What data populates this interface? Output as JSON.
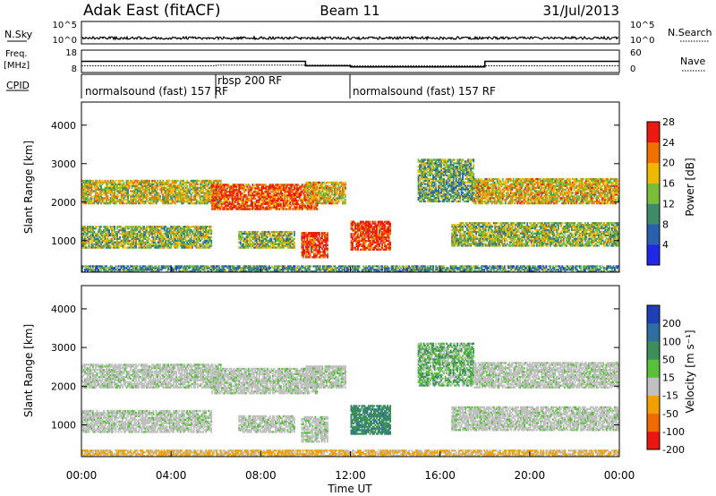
{
  "header": {
    "station": "Adak East (fitACF)",
    "beam": "Beam 11",
    "date": "31/Jul/2013"
  },
  "noise_panel": {
    "left_label": "N.Sky",
    "right_label": "N.Search",
    "left_ticks": [
      "10^5",
      "10^0"
    ],
    "right_ticks": [
      "10^5",
      "10^0"
    ]
  },
  "freq_panel": {
    "left_label": "Freq.",
    "left_unit": "[MHz]",
    "right_label": "Nave",
    "left_ticks": [
      "18",
      "8"
    ],
    "right_ticks": [
      "60",
      "0"
    ]
  },
  "cpid": {
    "label": "CPID",
    "segments": [
      {
        "text": "normalsound (fast) 157 RF",
        "start_hour": 0,
        "end_hour": 6
      },
      {
        "text": "rbsp 200 RF",
        "start_hour": 6,
        "end_hour": 12
      },
      {
        "text": "normalsound (fast) 157 RF",
        "start_hour": 12,
        "end_hour": 24
      }
    ]
  },
  "x_axis": {
    "title": "Time UT",
    "range_hours": [
      0,
      24
    ],
    "ticks": [
      {
        "hour": 0,
        "label": "00:00"
      },
      {
        "hour": 4,
        "label": "04:00"
      },
      {
        "hour": 8,
        "label": "08:00"
      },
      {
        "hour": 12,
        "label": "12:00"
      },
      {
        "hour": 16,
        "label": "16:00"
      },
      {
        "hour": 20,
        "label": "20:00"
      },
      {
        "hour": 24,
        "label": "00:00"
      }
    ]
  },
  "chart_data": [
    {
      "type": "heatmap",
      "parameter": "power",
      "ylabel": "Slant Range [km]",
      "ylim": [
        180,
        4600
      ],
      "yticks": [
        "1000",
        "2000",
        "3000",
        "4000"
      ],
      "colorbar": {
        "label": "Power [dB]",
        "levels": [
          "4",
          "8",
          "12",
          "16",
          "20",
          "24",
          "28"
        ],
        "colors": [
          "#1f28e6",
          "#2a5fb0",
          "#3e8b6a",
          "#79bd38",
          "#f0b800",
          "#f07000",
          "#ea1a10"
        ]
      },
      "echo_regions": [
        {
          "t0": 0.0,
          "t1": 6.2,
          "r0": 1950,
          "r1": 2550,
          "power_db": 18
        },
        {
          "t0": 0.0,
          "t1": 5.8,
          "r0": 800,
          "r1": 1350,
          "power_db": 16
        },
        {
          "t0": 5.8,
          "t1": 10.5,
          "r0": 1800,
          "r1": 2450,
          "power_db": 26
        },
        {
          "t0": 7.0,
          "t1": 9.5,
          "r0": 800,
          "r1": 1250,
          "power_db": 16
        },
        {
          "t0": 10.0,
          "t1": 11.8,
          "r0": 1950,
          "r1": 2500,
          "power_db": 20
        },
        {
          "t0": 9.8,
          "t1": 11.0,
          "r0": 550,
          "r1": 1200,
          "power_db": 28
        },
        {
          "t0": 12.0,
          "t1": 13.8,
          "r0": 750,
          "r1": 1500,
          "power_db": 28
        },
        {
          "t0": 15.0,
          "t1": 17.5,
          "r0": 2000,
          "r1": 3100,
          "power_db": 14
        },
        {
          "t0": 17.5,
          "t1": 24.0,
          "r0": 1950,
          "r1": 2600,
          "power_db": 20
        },
        {
          "t0": 16.5,
          "t1": 24.0,
          "r0": 850,
          "r1": 1450,
          "power_db": 16
        },
        {
          "t0": 0.0,
          "t1": 24.0,
          "r0": 180,
          "r1": 320,
          "power_db": 12
        }
      ]
    },
    {
      "type": "heatmap",
      "parameter": "velocity",
      "ylabel": "Slant Range [km]",
      "ylim": [
        180,
        4600
      ],
      "yticks": [
        "1000",
        "2000",
        "3000",
        "4000"
      ],
      "colorbar": {
        "label": "Velocity [m s⁻¹]",
        "levels": [
          "200",
          "100",
          "50",
          "15",
          "-15",
          "-50",
          "-100",
          "-200"
        ],
        "colors": [
          "#1f3fb8",
          "#2f6fa0",
          "#3c8f5a",
          "#58c03a",
          "#c0c0c0",
          "#f2a000",
          "#f06a00",
          "#e81810"
        ]
      },
      "echo_regions": [
        {
          "t0": 0.0,
          "t1": 6.2,
          "r0": 1950,
          "r1": 2550,
          "velocity": 0
        },
        {
          "t0": 0.0,
          "t1": 5.8,
          "r0": 800,
          "r1": 1350,
          "velocity": 0
        },
        {
          "t0": 5.8,
          "t1": 10.5,
          "r0": 1800,
          "r1": 2450,
          "velocity": 0
        },
        {
          "t0": 7.0,
          "t1": 9.5,
          "r0": 800,
          "r1": 1250,
          "velocity": 0
        },
        {
          "t0": 10.0,
          "t1": 11.8,
          "r0": 1950,
          "r1": 2500,
          "velocity": 0
        },
        {
          "t0": 9.8,
          "t1": 11.0,
          "r0": 550,
          "r1": 1200,
          "velocity": 0
        },
        {
          "t0": 12.0,
          "t1": 13.8,
          "r0": 750,
          "r1": 1500,
          "velocity": 60
        },
        {
          "t0": 15.0,
          "t1": 17.5,
          "r0": 2000,
          "r1": 3100,
          "velocity": 25
        },
        {
          "t0": 17.5,
          "t1": 24.0,
          "r0": 1950,
          "r1": 2600,
          "velocity": 0
        },
        {
          "t0": 16.5,
          "t1": 24.0,
          "r0": 850,
          "r1": 1450,
          "velocity": 0
        },
        {
          "t0": 0.0,
          "t1": 24.0,
          "r0": 180,
          "r1": 320,
          "velocity": -40
        }
      ]
    },
    {
      "type": "line",
      "parameter": "transmit frequency / nave",
      "freq_steps": [
        {
          "t0": 0.0,
          "t1": 10.0,
          "value": 13
        },
        {
          "t0": 10.0,
          "t1": 12.0,
          "value": 11
        },
        {
          "t0": 12.0,
          "t1": 18.0,
          "value": 10.5
        },
        {
          "t0": 18.0,
          "t1": 24.0,
          "value": 13
        }
      ],
      "nave_steps": [
        {
          "t0": 0.0,
          "t1": 6.0,
          "value": 18
        },
        {
          "t0": 6.0,
          "t1": 12.0,
          "value": 20
        },
        {
          "t0": 12.0,
          "t1": 24.0,
          "value": 18
        }
      ]
    }
  ]
}
